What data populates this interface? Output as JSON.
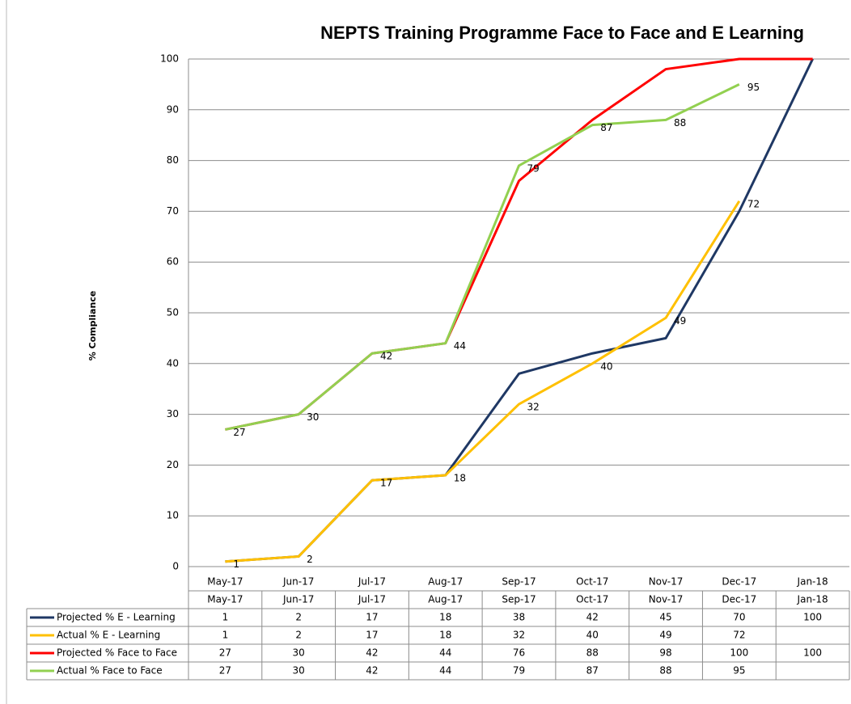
{
  "chart_data": {
    "type": "line",
    "title": "NEPTS Training Programme Face to Face and E Learning",
    "y_label": "% Compliance",
    "categories": [
      "May-17",
      "Jun-17",
      "Jul-17",
      "Aug-17",
      "Sep-17",
      "Oct-17",
      "Nov-17",
      "Dec-17",
      "Jan-18"
    ],
    "series": [
      {
        "name": "Projected % E - Learning",
        "color": "#1f3864",
        "values": [
          1,
          2,
          17,
          18,
          38,
          42,
          45,
          70,
          100
        ],
        "data_labels": false
      },
      {
        "name": "Actual % E - Learning",
        "color": "#ffc000",
        "values": [
          1,
          2,
          17,
          18,
          32,
          40,
          49,
          72,
          null
        ],
        "data_labels": true
      },
      {
        "name": "Projected % Face to Face",
        "color": "#ff0000",
        "values": [
          27,
          30,
          42,
          44,
          76,
          88,
          98,
          100,
          100
        ],
        "data_labels": false
      },
      {
        "name": "Actual % Face to Face",
        "color": "#92d050",
        "values": [
          27,
          30,
          42,
          44,
          79,
          87,
          88,
          95,
          null
        ],
        "data_labels": true
      }
    ],
    "ylim": [
      0,
      100
    ],
    "yticks": [
      0,
      10,
      20,
      30,
      40,
      50,
      60,
      70,
      80,
      90,
      100
    ],
    "grid": true,
    "data_table": true
  }
}
